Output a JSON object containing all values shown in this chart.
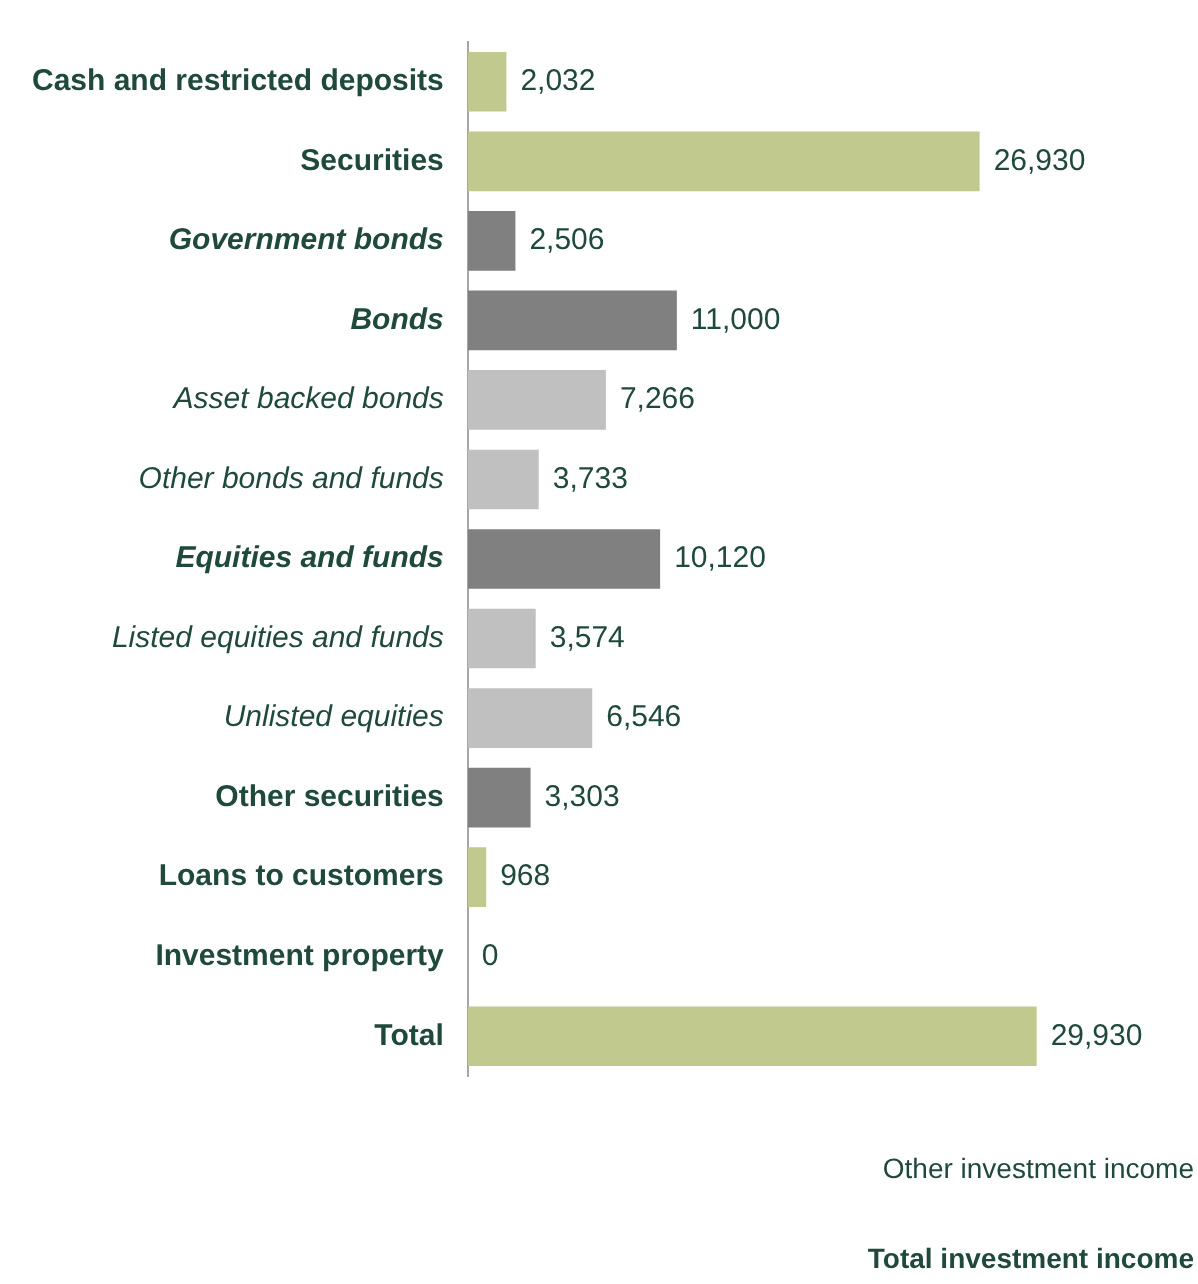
{
  "chart_data": {
    "type": "bar",
    "orientation": "horizontal",
    "categories": [
      "Cash and restricted deposits",
      "Securities",
      "Government bonds",
      "Bonds",
      "Asset backed bonds",
      "Other bonds and funds",
      "Equities and funds",
      "Listed equities and funds",
      "Unlisted equities",
      "Other securities",
      "Loans to customers",
      "Investment property",
      "Total"
    ],
    "values": [
      2032,
      26930,
      2506,
      11000,
      7266,
      3733,
      10120,
      3574,
      6546,
      3303,
      968,
      0,
      29930
    ],
    "colors": [
      "#c2c98f",
      "#c2c98f",
      "#808080",
      "#808080",
      "#c0c0c0",
      "#c0c0c0",
      "#808080",
      "#c0c0c0",
      "#c0c0c0",
      "#808080",
      "#c2c98f",
      "#c2c98f",
      "#c2c98f"
    ],
    "value_labels": [
      "2,032",
      "26,930",
      "2,506",
      "11,000",
      "7,266",
      "3,733",
      "10,120",
      "3,574",
      "6,546",
      "3,303",
      "968",
      "0",
      "29,930"
    ],
    "grid": false,
    "annotations": [
      "Other investment income",
      "Total investment income"
    ]
  }
}
